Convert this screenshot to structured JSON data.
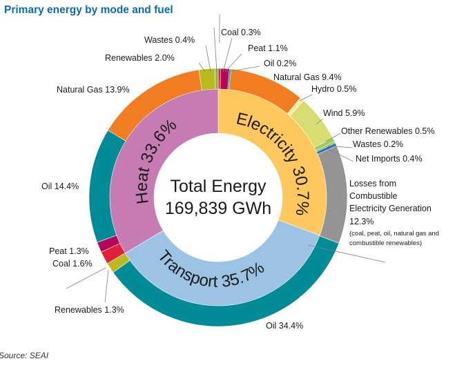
{
  "chart_data": {
    "type": "pie",
    "title": "Primary energy by mode and fuel",
    "source": "Source: SEAI",
    "center_label": [
      "Total Energy",
      "169,839 GWh"
    ],
    "inner_ring": [
      {
        "label": "Electricity 30.7%",
        "value": 30.7,
        "color": "#fec85e"
      },
      {
        "label": "Transport 35.7%",
        "value": 35.7,
        "color": "#9dc3e4"
      },
      {
        "label": "Heat 33.6%",
        "value": 33.6,
        "color": "#c77bb3"
      }
    ],
    "outer_ring": [
      {
        "label": "Coal 0.3%",
        "value": 0.3,
        "color": "#e2203a"
      },
      {
        "label": "Peat 1.1%",
        "value": 1.1,
        "color": "#b5085c"
      },
      {
        "label": "Oil 0.2%",
        "value": 0.2,
        "color": "#0093a4"
      },
      {
        "label": "Natural Gas 9.4%",
        "value": 9.4,
        "color": "#f07d22"
      },
      {
        "label": "Hydro 0.5%",
        "value": 0.5,
        "color": "#fbe8a4"
      },
      {
        "label": "Wind 5.9%",
        "value": 5.9,
        "color": "#d8dd71"
      },
      {
        "label": "Other Renewables 0.5%",
        "value": 0.5,
        "color": "#9ecb55"
      },
      {
        "label": "Wastes 0.2%",
        "value": 0.2,
        "color": "#8ab83f"
      },
      {
        "label": "Net Imports 0.4%",
        "value": 0.4,
        "color": "#2f6fbe"
      },
      {
        "label": "Losses from Combustible Electricity Generation 12.3%",
        "value": 12.3,
        "color": "#949494"
      },
      {
        "label": "Oil 34.4%",
        "value": 34.4,
        "color": "#008b96"
      },
      {
        "label": "Renewables 1.3%",
        "value": 1.3,
        "color": "#bab91e"
      },
      {
        "label": "Coal 1.6%",
        "value": 1.6,
        "color": "#e2203a"
      },
      {
        "label": "Peat 1.3%",
        "value": 1.3,
        "color": "#b5085c"
      },
      {
        "label": "Oil 14.4%",
        "value": 14.4,
        "color": "#008b96"
      },
      {
        "label": "Natural Gas 13.9%",
        "value": 13.9,
        "color": "#f07d22"
      },
      {
        "label": "Renewables 2.0%",
        "value": 2.0,
        "color": "#bab91e"
      },
      {
        "label": "Wastes 0.4%",
        "value": 0.4,
        "color": "#8ab83f"
      }
    ],
    "outer_labels": {
      "coal_top": "Coal 0.3%",
      "peat_top": "Peat 1.1%",
      "oil_top": "Oil 0.2%",
      "natgas_elec": "Natural Gas 9.4%",
      "hydro": "Hydro 0.5%",
      "wind": "Wind 5.9%",
      "other_ren": "Other Renewables 0.5%",
      "wastes_elec": "Wastes 0.2%",
      "net_imports": "Net Imports 0.4%",
      "losses_1": "Losses from",
      "losses_2": "Combustible",
      "losses_3": "Electricity Generation",
      "losses_4": "12.3%",
      "losses_note_1": "(coal, peat, oil, natural gas and",
      "losses_note_2": "combustible renewables)",
      "oil_transport": "Oil 34.4%",
      "ren_transport": "Renewables 1.3%",
      "coal_heat": "Coal 1.6%",
      "peat_heat": "Peat 1.3%",
      "oil_heat": "Oil 14.4%",
      "natgas_heat": "Natural Gas 13.9%",
      "ren_heat": "Renewables 2.0%",
      "wastes_heat": "Wastes 0.4%"
    }
  }
}
